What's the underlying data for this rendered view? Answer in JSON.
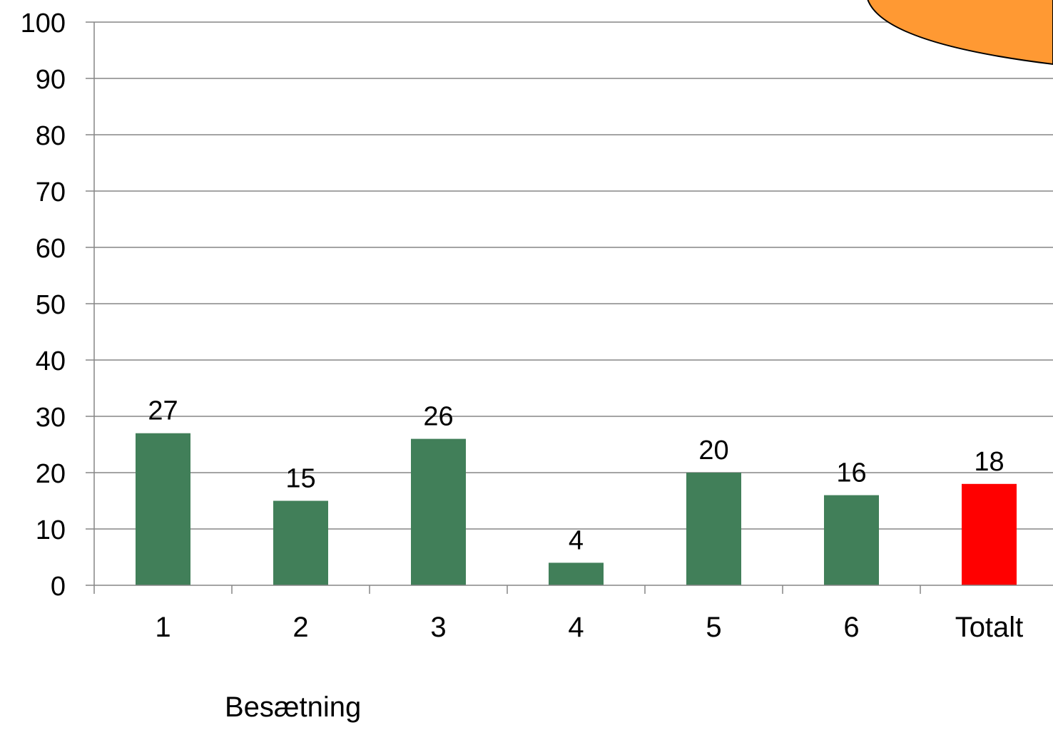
{
  "chart_data": {
    "type": "bar",
    "categories": [
      "1",
      "2",
      "3",
      "4",
      "5",
      "6",
      "Totalt"
    ],
    "values": [
      27,
      15,
      26,
      4,
      20,
      16,
      18
    ],
    "data_labels": [
      "27",
      "15",
      "26",
      "4",
      "20",
      "16",
      "18"
    ],
    "xlabel": "Besætning",
    "ylabel": "",
    "title": "",
    "ylim": [
      0,
      100
    ],
    "yticks": [
      0,
      10,
      20,
      30,
      40,
      50,
      60,
      70,
      80,
      90,
      100
    ],
    "grid": true,
    "legend": "none",
    "bar_colors": [
      "#417f59",
      "#417f59",
      "#417f59",
      "#417f59",
      "#417f59",
      "#417f59",
      "#ff0000"
    ],
    "decoration": {
      "shape": "speech-bubble",
      "fill": "#ff9933",
      "stroke": "#000000"
    }
  }
}
